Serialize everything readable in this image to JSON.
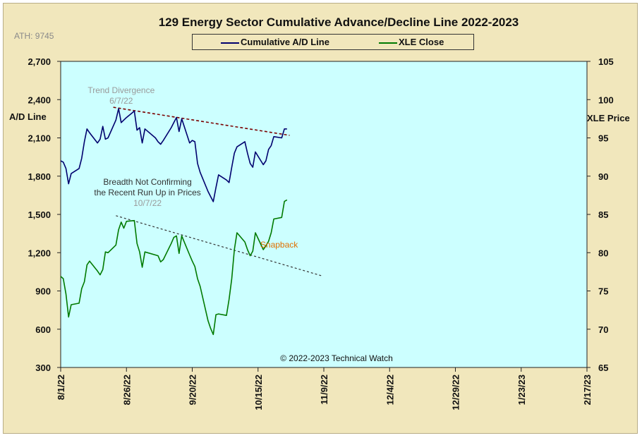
{
  "chart_data": {
    "type": "line",
    "title": "129 Energy Sector Cumulative Advance/Decline Line 2022-2023",
    "note_ath": "ATH: 9745",
    "ylabel_left": "A/D Line",
    "ylabel_right": "XLE Price",
    "ylim_left": [
      300,
      2700
    ],
    "ylim_right": [
      65,
      105
    ],
    "yticks_left": [
      "300",
      "600",
      "900",
      "1,200",
      "1,500",
      "1,800",
      "2,100",
      "2,400",
      "2,700"
    ],
    "yticks_right": [
      "65",
      "70",
      "75",
      "80",
      "85",
      "90",
      "95",
      "100",
      "105"
    ],
    "xlim": [
      "2022-08-01",
      "2023-02-17"
    ],
    "xticks": [
      "8/1/22",
      "8/26/22",
      "9/20/22",
      "10/15/22",
      "11/9/22",
      "12/4/22",
      "12/29/22",
      "1/23/23",
      "2/17/23"
    ],
    "grid": false,
    "legend_position": "top-center",
    "copyright": "© 2022-2023  Technical Watch",
    "colors": {
      "ad": "#00006e",
      "xle": "#007a00",
      "plot_bg": "#ccffff",
      "frame_bg": "#f1e7bc",
      "ad_trend": "#7a0000",
      "xle_trend": "#333333",
      "snapback": "#e07000",
      "annotation": "#9a9a9a"
    },
    "annotations": [
      {
        "lines": [
          "Trend Divergence",
          "6/7/22"
        ],
        "color": "#9a9a9a",
        "x": "2022-08-24",
        "y_left": 2450,
        "size": 12
      },
      {
        "lines": [
          "Breadth Not Confirming",
          "the Recent Run Up in Prices",
          "10/7/22"
        ],
        "color": "#333333",
        "x": "2022-09-03",
        "y_left": 1733,
        "size": 12
      },
      {
        "lines": [
          "Snapback"
        ],
        "color": "#e07000",
        "x": "2022-10-23",
        "y_left": 1240,
        "size": 12
      }
    ],
    "trendlines": [
      {
        "name": "A/D Trend",
        "axis": "left",
        "color": "#7a0000",
        "dash": "4,3",
        "width": 1.6,
        "points": [
          [
            "2022-08-21",
            2340
          ],
          [
            "2022-10-27",
            2120
          ]
        ]
      },
      {
        "name": "XLE Trend",
        "axis": "left",
        "color": "#333333",
        "dash": "3,3",
        "width": 1.2,
        "points": [
          [
            "2022-08-22",
            1490
          ],
          [
            "2022-11-08",
            1020
          ]
        ]
      }
    ],
    "series": [
      {
        "name": "Cumulative A/D Line",
        "axis": "left",
        "color": "#00006e",
        "x": [
          "2022-08-01",
          "2022-08-02",
          "2022-08-03",
          "2022-08-04",
          "2022-08-05",
          "2022-08-08",
          "2022-08-09",
          "2022-08-10",
          "2022-08-11",
          "2022-08-12",
          "2022-08-15",
          "2022-08-16",
          "2022-08-17",
          "2022-08-18",
          "2022-08-19",
          "2022-08-22",
          "2022-08-23",
          "2022-08-24",
          "2022-08-25",
          "2022-08-26",
          "2022-08-29",
          "2022-08-30",
          "2022-08-31",
          "2022-09-01",
          "2022-09-02",
          "2022-09-06",
          "2022-09-07",
          "2022-09-08",
          "2022-09-09",
          "2022-09-12",
          "2022-09-13",
          "2022-09-14",
          "2022-09-15",
          "2022-09-16",
          "2022-09-19",
          "2022-09-20",
          "2022-09-21",
          "2022-09-22",
          "2022-09-23",
          "2022-09-26",
          "2022-09-27",
          "2022-09-28",
          "2022-09-29",
          "2022-09-30",
          "2022-10-03",
          "2022-10-04",
          "2022-10-05",
          "2022-10-06",
          "2022-10-07",
          "2022-10-10",
          "2022-10-11",
          "2022-10-12",
          "2022-10-13",
          "2022-10-14",
          "2022-10-17",
          "2022-10-18",
          "2022-10-19",
          "2022-10-20",
          "2022-10-21",
          "2022-10-24",
          "2022-10-25",
          "2022-10-26"
        ],
        "values": [
          1920,
          1910,
          1860,
          1740,
          1820,
          1860,
          1940,
          2070,
          2170,
          2140,
          2060,
          2090,
          2190,
          2090,
          2100,
          2240,
          2330,
          2220,
          2240,
          2260,
          2310,
          2160,
          2180,
          2060,
          2170,
          2100,
          2070,
          2050,
          2080,
          2180,
          2220,
          2260,
          2150,
          2250,
          2060,
          2080,
          2070,
          1900,
          1830,
          1680,
          1640,
          1600,
          1710,
          1810,
          1770,
          1750,
          1870,
          1980,
          2030,
          2070,
          1980,
          1900,
          1870,
          1990,
          1890,
          1920,
          2010,
          2040,
          2110,
          2100,
          2170,
          2170
        ]
      },
      {
        "name": "XLE Close",
        "axis": "right",
        "color": "#007a00",
        "x": [
          "2022-08-01",
          "2022-08-02",
          "2022-08-03",
          "2022-08-04",
          "2022-08-05",
          "2022-08-08",
          "2022-08-09",
          "2022-08-10",
          "2022-08-11",
          "2022-08-12",
          "2022-08-15",
          "2022-08-16",
          "2022-08-17",
          "2022-08-18",
          "2022-08-19",
          "2022-08-22",
          "2022-08-23",
          "2022-08-24",
          "2022-08-25",
          "2022-08-26",
          "2022-08-29",
          "2022-08-30",
          "2022-08-31",
          "2022-09-01",
          "2022-09-02",
          "2022-09-06",
          "2022-09-07",
          "2022-09-08",
          "2022-09-09",
          "2022-09-12",
          "2022-09-13",
          "2022-09-14",
          "2022-09-15",
          "2022-09-16",
          "2022-09-19",
          "2022-09-20",
          "2022-09-21",
          "2022-09-22",
          "2022-09-23",
          "2022-09-26",
          "2022-09-27",
          "2022-09-28",
          "2022-09-29",
          "2022-09-30",
          "2022-10-03",
          "2022-10-04",
          "2022-10-05",
          "2022-10-06",
          "2022-10-07",
          "2022-10-10",
          "2022-10-11",
          "2022-10-12",
          "2022-10-13",
          "2022-10-14",
          "2022-10-17",
          "2022-10-18",
          "2022-10-19",
          "2022-10-20",
          "2022-10-21",
          "2022-10-24",
          "2022-10-25",
          "2022-10-26"
        ],
        "values": [
          76.9,
          76.6,
          74.6,
          71.6,
          73.2,
          73.4,
          75.3,
          76.2,
          78.4,
          78.9,
          77.6,
          77.1,
          77.8,
          80.1,
          80.0,
          81.0,
          83.0,
          84.0,
          83.2,
          84.1,
          84.2,
          81.2,
          80.1,
          78.1,
          80.1,
          79.7,
          79.6,
          78.8,
          79.1,
          81.2,
          82.0,
          82.2,
          79.9,
          82.2,
          79.7,
          78.9,
          78.2,
          76.6,
          75.6,
          71.1,
          70.1,
          69.3,
          71.9,
          72.0,
          71.8,
          73.9,
          76.6,
          80.4,
          82.6,
          81.4,
          80.4,
          79.6,
          80.2,
          82.6,
          80.4,
          80.9,
          81.5,
          82.6,
          84.4,
          84.6,
          86.7,
          86.9
        ]
      }
    ]
  }
}
